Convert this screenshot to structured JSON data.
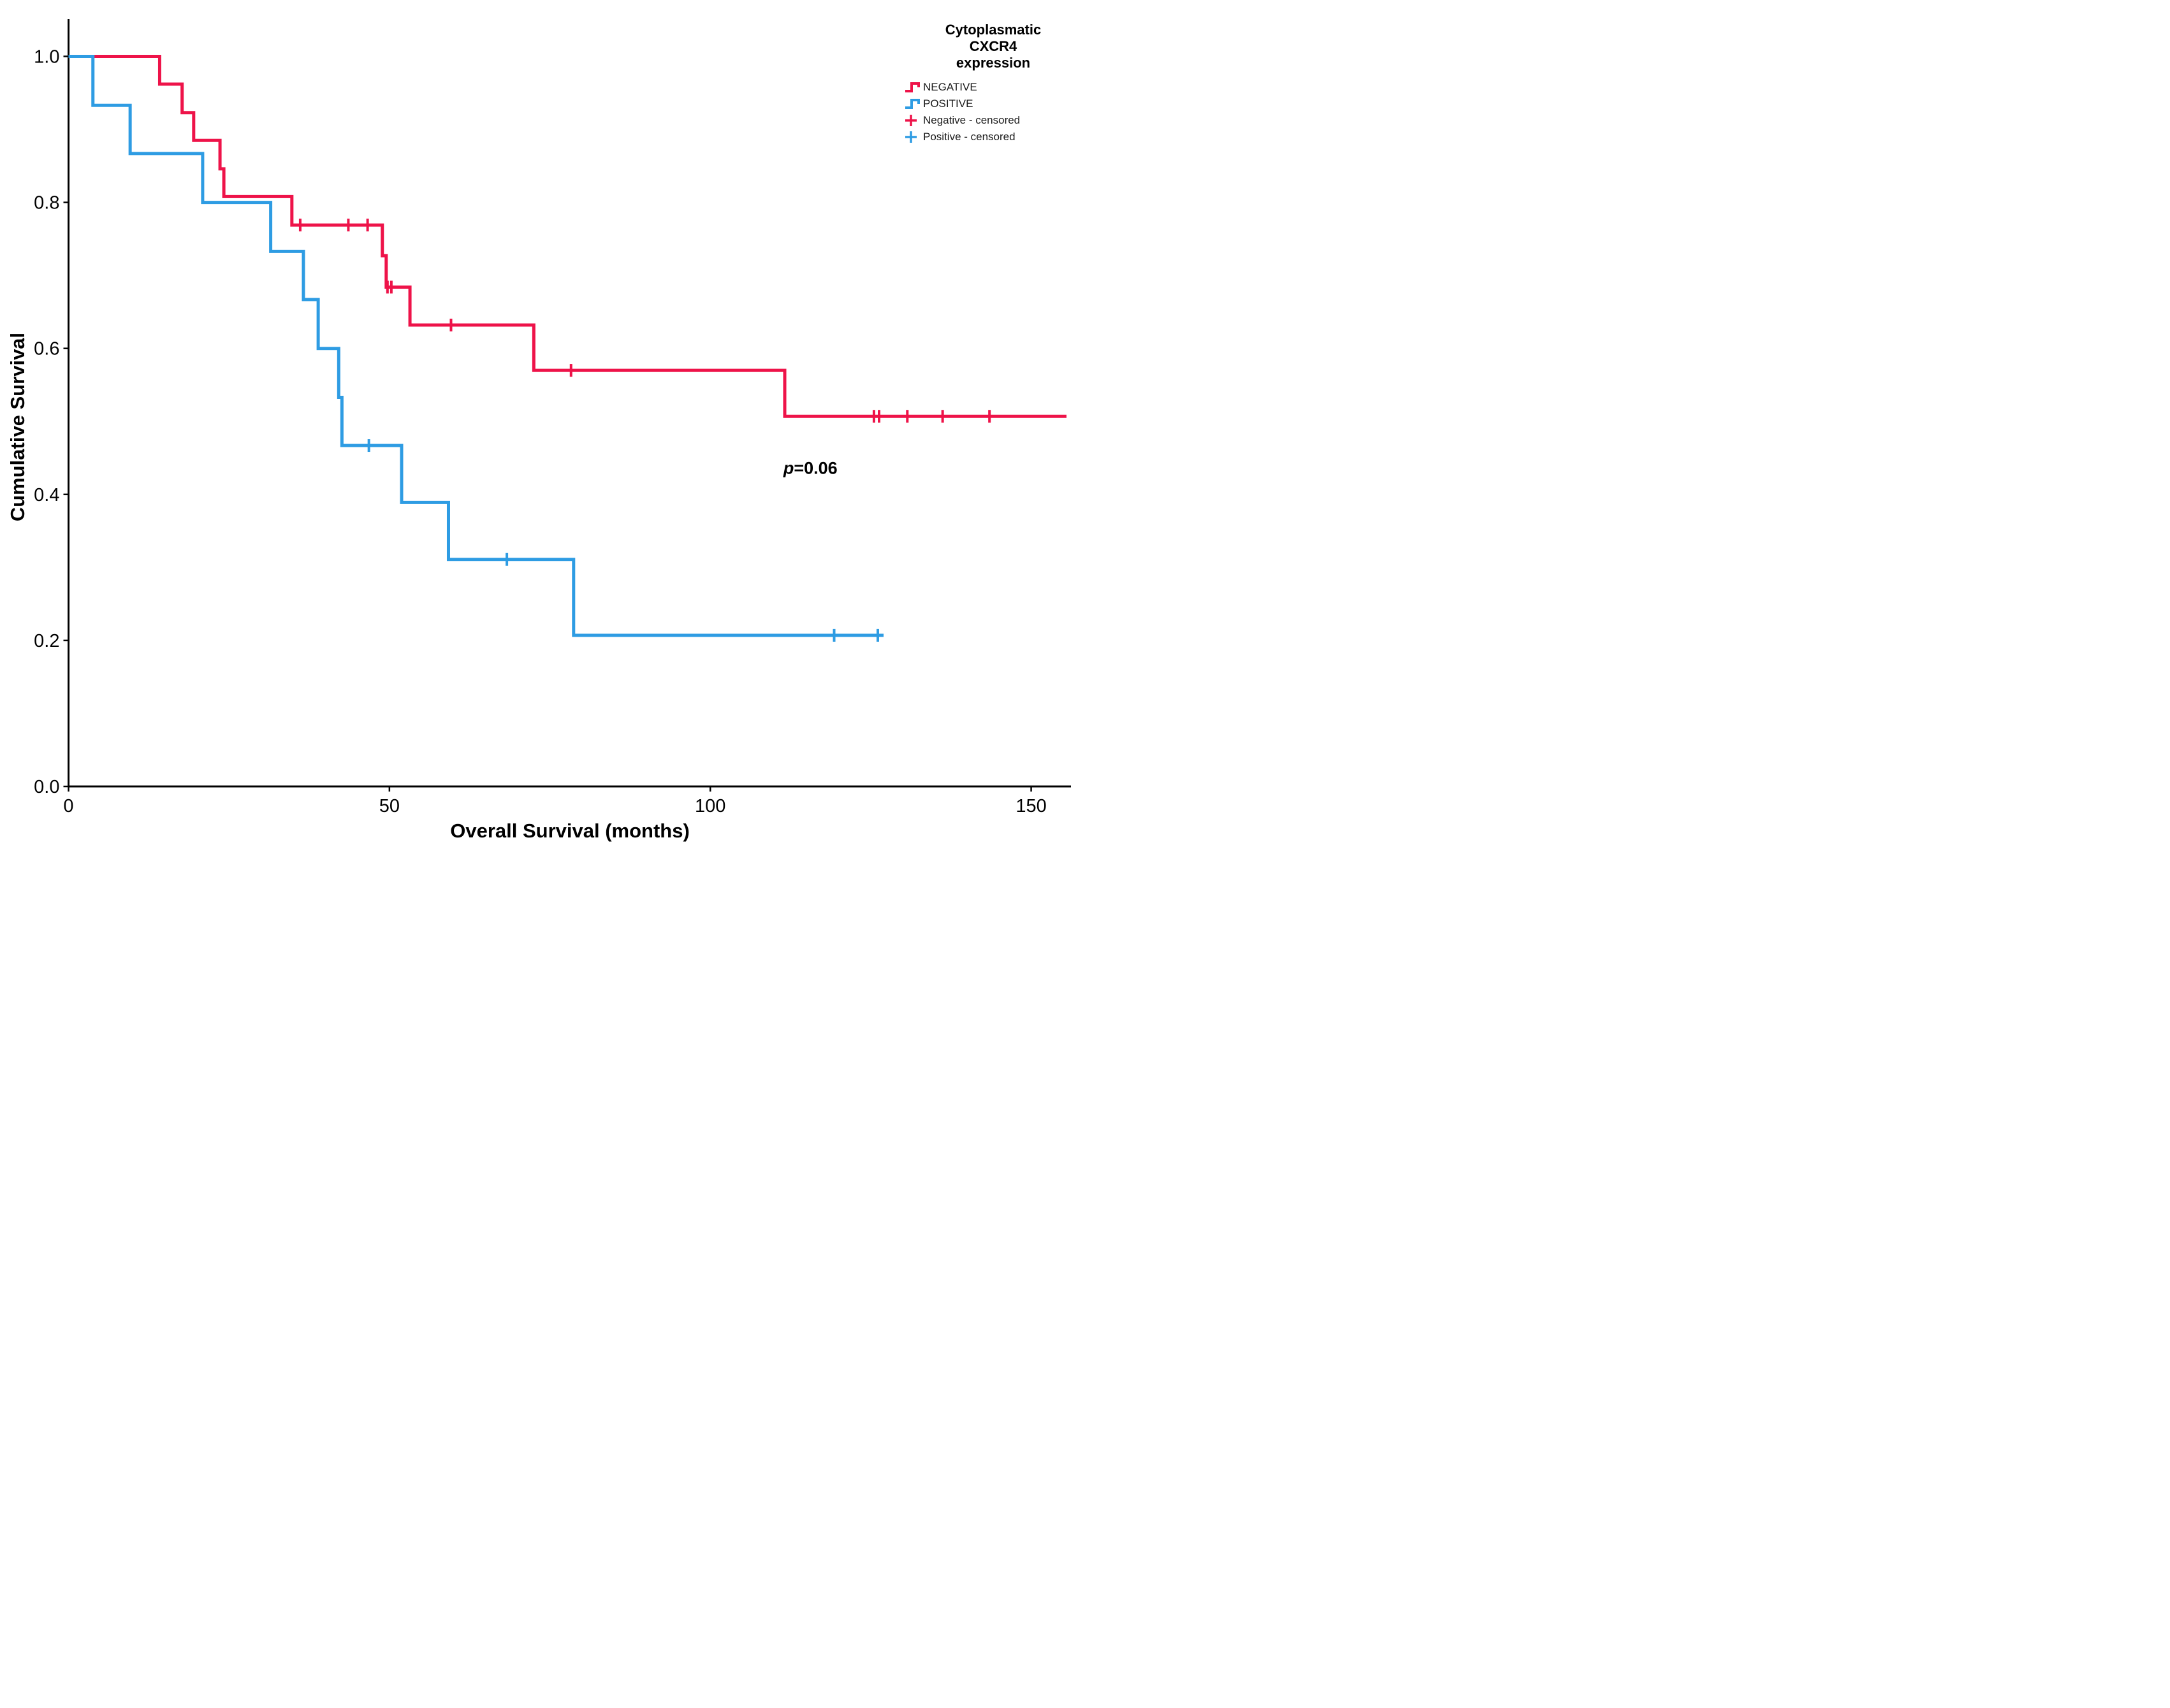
{
  "page": {
    "background": "#ffffff"
  },
  "axis_color": "#000000",
  "chart_data": {
    "type": "line",
    "subtype": "kaplan-meier-step",
    "title": "",
    "xlabel": "Overall Survival (months)",
    "ylabel": "Cumulative Survival",
    "xlim": [
      0,
      156.2
    ],
    "ylim": [
      0.0,
      1.0
    ],
    "xticks": [
      0,
      50,
      100,
      150
    ],
    "yticks": [
      "0.0",
      "0.2",
      "0.4",
      "0.6",
      "0.8",
      "1.0"
    ],
    "grid": false,
    "legend_position": "top-right",
    "legend_title_lines": [
      "Cytoplasmatic",
      "CXCR4",
      "expression"
    ],
    "series": [
      {
        "name": "NEGATIVE",
        "censored_name": "Negative - censored",
        "color": "#EE1349",
        "line_end_x": 155.5,
        "steps": [
          [
            0,
            1.0
          ],
          [
            14.2,
            0.962
          ],
          [
            17.7,
            0.923
          ],
          [
            19.5,
            0.885
          ],
          [
            23.6,
            0.846
          ],
          [
            24.2,
            0.808
          ],
          [
            34.8,
            0.769
          ],
          [
            48.9,
            0.727
          ],
          [
            49.5,
            0.684
          ],
          [
            53.2,
            0.632
          ],
          [
            72.5,
            0.57
          ],
          [
            111.6,
            0.507
          ]
        ],
        "censored": [
          [
            36.1,
            0.769
          ],
          [
            43.6,
            0.769
          ],
          [
            46.6,
            0.769
          ],
          [
            49.7,
            0.684
          ],
          [
            50.3,
            0.684
          ],
          [
            59.6,
            0.632
          ],
          [
            78.3,
            0.57
          ],
          [
            125.5,
            0.507
          ],
          [
            126.3,
            0.507
          ],
          [
            130.7,
            0.507
          ],
          [
            136.2,
            0.507
          ],
          [
            143.5,
            0.507
          ]
        ]
      },
      {
        "name": "POSITIVE",
        "censored_name": "Positive - censored",
        "color": "#2E9CE3",
        "line_end_x": 127.0,
        "steps": [
          [
            0,
            1.0
          ],
          [
            3.8,
            0.933
          ],
          [
            9.6,
            0.867
          ],
          [
            20.9,
            0.8
          ],
          [
            31.5,
            0.733
          ],
          [
            36.6,
            0.667
          ],
          [
            38.9,
            0.6
          ],
          [
            42.1,
            0.533
          ],
          [
            42.6,
            0.467
          ],
          [
            51.9,
            0.389
          ],
          [
            59.2,
            0.311
          ],
          [
            78.7,
            0.207
          ]
        ],
        "censored": [
          [
            46.8,
            0.467
          ],
          [
            68.3,
            0.311
          ],
          [
            119.3,
            0.207
          ],
          [
            126.1,
            0.207
          ]
        ]
      }
    ],
    "annotation": {
      "text": "p=0.06",
      "italic_prefix": "p",
      "rest": "=0.06",
      "x": 115.6,
      "y": 0.428
    }
  }
}
